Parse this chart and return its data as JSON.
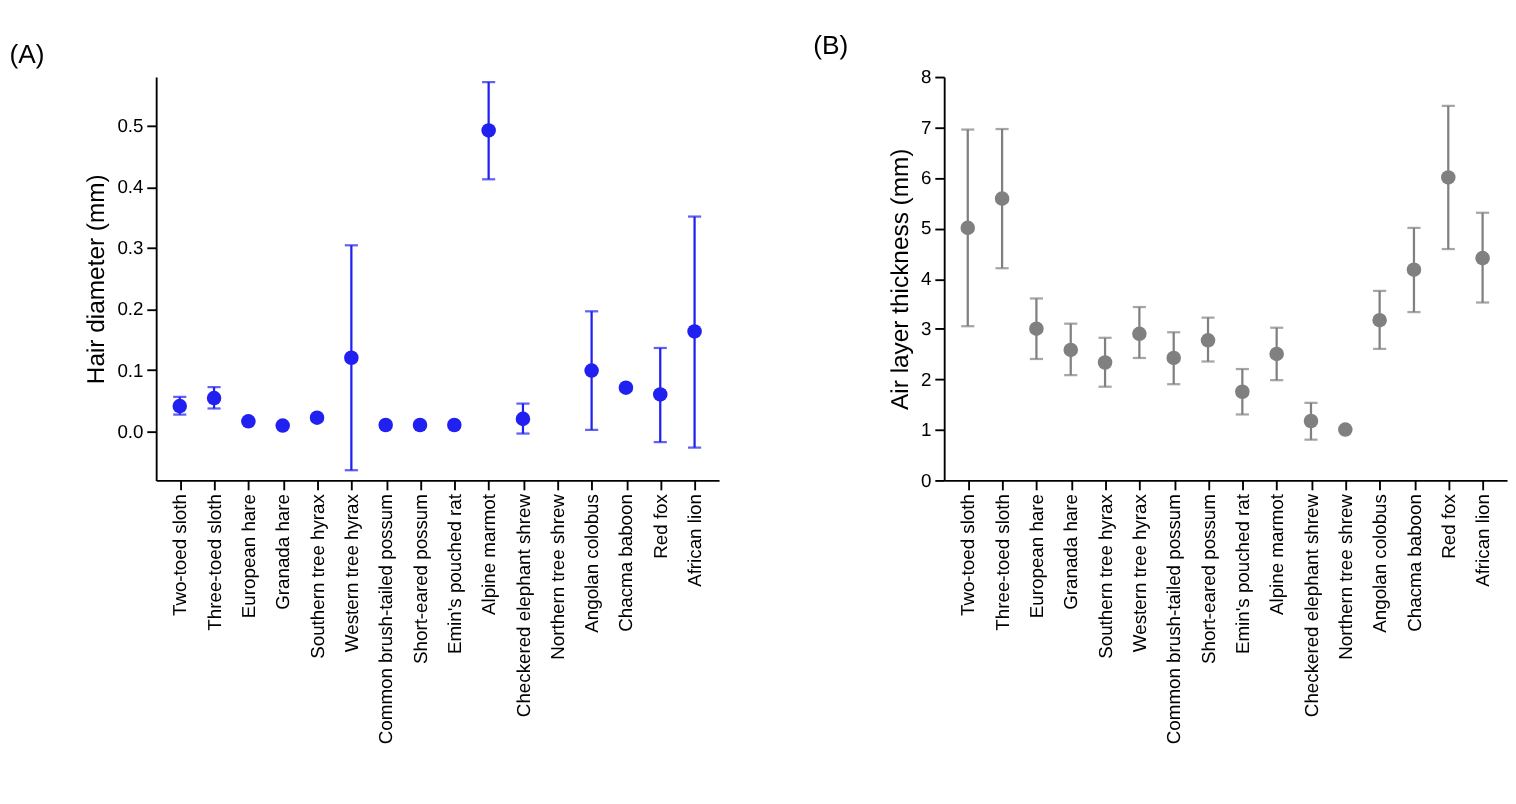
{
  "chart_data": [
    {
      "type": "scatter",
      "title": "(A)",
      "ylabel": "Hair diameter (mm)",
      "marker": "circle",
      "categories": [
        "Two-toed sloth",
        "Three-toed sloth",
        "European hare",
        "Granada hare",
        "Southern tree hyrax",
        "Western tree hyrax",
        "Common brush-tailed possum",
        "Short-eared possum",
        "Emin's pouched rat",
        "Alpine marmot",
        "Checkered elephant shrew",
        "Northern tree shrew",
        "Angolan colobus",
        "Chacma baboon",
        "Red fox",
        "African lion"
      ],
      "ylim": [
        -0.08,
        0.58
      ],
      "yticks": [
        {
          "value": 0,
          "label": "0.0"
        },
        0.1,
        0.2,
        0.3,
        0.4,
        0.5
      ],
      "series": [
        {
          "color": "#2020f0",
          "values": [
            0.041,
            0.054,
            0.016,
            0.009,
            0.022,
            0.12,
            0.01,
            0.01,
            0.01,
            0.492,
            0.02,
            null,
            0.099,
            0.071,
            0.06,
            0.163
          ],
          "errors": [
            [
              0.027,
              0.056
            ],
            [
              0.037,
              0.072
            ],
            null,
            null,
            null,
            [
              -0.064,
              0.304
            ],
            null,
            null,
            null,
            [
              0.412,
              0.571
            ],
            [
              -0.004,
              0.045
            ],
            null,
            [
              0.002,
              0.196
            ],
            null,
            [
              -0.018,
              0.136
            ],
            [
              -0.027,
              0.351
            ]
          ]
        }
      ]
    },
    {
      "type": "scatter",
      "title": "(B)",
      "ylabel": "Air layer thickness (mm)",
      "marker": "circle",
      "categories": [
        "Two-toed sloth",
        "Three-toed sloth",
        "European hare",
        "Granada hare",
        "Southern tree hyrax",
        "Western tree hyrax",
        "Common brush-tailed possum",
        "Short-eared possum",
        "Emin's pouched rat",
        "Alpine marmot",
        "Checkered elephant shrew",
        "Northern tree shrew",
        "Angolan colobus",
        "Chacma baboon",
        "Red fox",
        "African lion"
      ],
      "ylim": [
        0,
        8
      ],
      "yticks": [
        0,
        1,
        2,
        3,
        4,
        5,
        6,
        7,
        8
      ],
      "series": [
        {
          "color": "#808080",
          "values": [
            5.0,
            5.58,
            3.0,
            2.58,
            2.33,
            2.9,
            2.42,
            2.77,
            1.75,
            2.5,
            1.17,
            1.0,
            3.17,
            4.17,
            6.0,
            4.4
          ],
          "errors": [
            [
              3.05,
              6.95
            ],
            [
              4.2,
              6.96
            ],
            [
              2.4,
              3.6
            ],
            [
              2.08,
              3.1
            ],
            [
              1.85,
              2.82
            ],
            [
              2.42,
              3.43
            ],
            [
              1.9,
              2.93
            ],
            [
              2.35,
              3.22
            ],
            [
              1.3,
              2.2
            ],
            [
              1.98,
              3.02
            ],
            [
              0.8,
              1.53
            ],
            null,
            [
              2.6,
              3.75
            ],
            [
              3.33,
              5.0
            ],
            [
              4.58,
              7.42
            ],
            [
              3.52,
              5.3
            ]
          ]
        }
      ]
    }
  ]
}
